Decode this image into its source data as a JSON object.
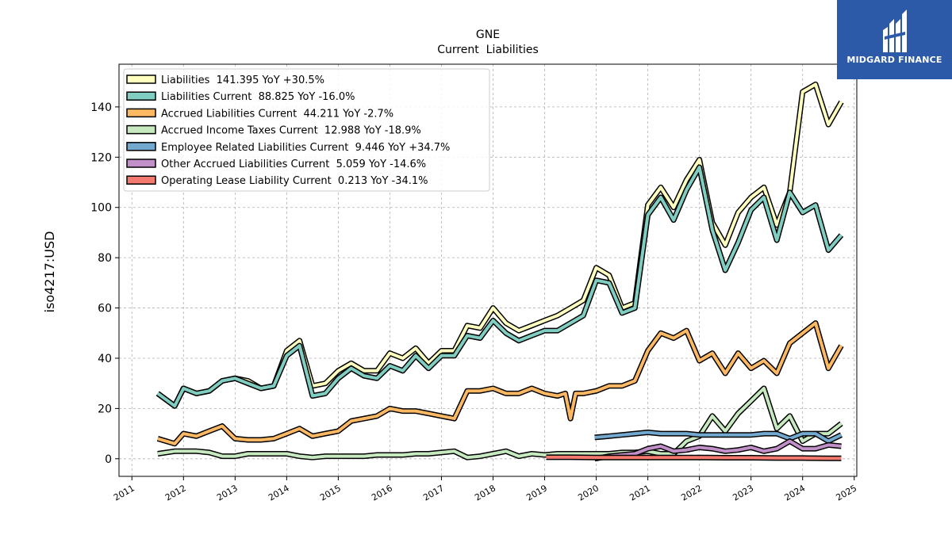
{
  "chart_data": {
    "type": "line",
    "title": "GNE",
    "subtitle": "Current  Liabilities",
    "ylabel": "iso4217:USD",
    "xlabel": "",
    "xlim": [
      2010.75,
      2025.05
    ],
    "ylim": [
      -7,
      157
    ],
    "x_ticks": [
      "2011",
      "2012",
      "2013",
      "2014",
      "2015",
      "2016",
      "2017",
      "2018",
      "2019",
      "2020",
      "2021",
      "2022",
      "2023",
      "2024",
      "2025"
    ],
    "y_ticks": [
      "0",
      "20",
      "40",
      "60",
      "80",
      "100",
      "120",
      "140"
    ],
    "grid": true,
    "legend_position": "top-left",
    "series": [
      {
        "name": "Liabilities",
        "legend": "Liabilities  141.395 YoY +30.5%",
        "color": "#ffffbf",
        "points": [
          [
            2011.5,
            26
          ],
          [
            2011.83,
            21
          ],
          [
            2012.0,
            28
          ],
          [
            2012.25,
            26
          ],
          [
            2012.5,
            27
          ],
          [
            2012.75,
            31
          ],
          [
            2013.0,
            32
          ],
          [
            2013.25,
            31
          ],
          [
            2013.5,
            28
          ],
          [
            2013.75,
            29
          ],
          [
            2014.0,
            43
          ],
          [
            2014.25,
            47
          ],
          [
            2014.5,
            29
          ],
          [
            2014.75,
            30
          ],
          [
            2015.0,
            35
          ],
          [
            2015.25,
            38
          ],
          [
            2015.5,
            35
          ],
          [
            2015.75,
            35
          ],
          [
            2016.0,
            42
          ],
          [
            2016.25,
            40
          ],
          [
            2016.5,
            44
          ],
          [
            2016.75,
            38
          ],
          [
            2017.0,
            43
          ],
          [
            2017.25,
            43
          ],
          [
            2017.5,
            53
          ],
          [
            2017.75,
            52
          ],
          [
            2018.0,
            60
          ],
          [
            2018.25,
            54
          ],
          [
            2018.5,
            51
          ],
          [
            2018.75,
            53
          ],
          [
            2019.0,
            55
          ],
          [
            2019.25,
            57
          ],
          [
            2019.5,
            60
          ],
          [
            2019.75,
            63
          ],
          [
            2020.0,
            76
          ],
          [
            2020.25,
            73
          ],
          [
            2020.5,
            60
          ],
          [
            2020.75,
            62
          ],
          [
            2021.0,
            101
          ],
          [
            2021.25,
            108
          ],
          [
            2021.5,
            100
          ],
          [
            2021.75,
            111
          ],
          [
            2022.0,
            119
          ],
          [
            2022.25,
            94
          ],
          [
            2022.5,
            85
          ],
          [
            2022.75,
            98
          ],
          [
            2023.0,
            104
          ],
          [
            2023.25,
            108
          ],
          [
            2023.5,
            93
          ],
          [
            2023.75,
            106
          ],
          [
            2024.0,
            146
          ],
          [
            2024.25,
            149
          ],
          [
            2024.5,
            133
          ],
          [
            2024.75,
            142
          ]
        ]
      },
      {
        "name": "Liabilities Current",
        "legend": "Liabilities Current  88.825 YoY -16.0%",
        "color": "#80cdc1",
        "points": [
          [
            2011.5,
            26
          ],
          [
            2011.83,
            21
          ],
          [
            2012.0,
            28
          ],
          [
            2012.25,
            26
          ],
          [
            2012.5,
            27
          ],
          [
            2012.75,
            31
          ],
          [
            2013.0,
            32
          ],
          [
            2013.25,
            30
          ],
          [
            2013.5,
            28
          ],
          [
            2013.75,
            29
          ],
          [
            2014.0,
            41
          ],
          [
            2014.25,
            45
          ],
          [
            2014.5,
            25
          ],
          [
            2014.75,
            26
          ],
          [
            2015.0,
            32
          ],
          [
            2015.25,
            36
          ],
          [
            2015.5,
            33
          ],
          [
            2015.75,
            32
          ],
          [
            2016.0,
            37
          ],
          [
            2016.25,
            35
          ],
          [
            2016.5,
            41
          ],
          [
            2016.75,
            36
          ],
          [
            2017.0,
            41
          ],
          [
            2017.25,
            41
          ],
          [
            2017.5,
            49
          ],
          [
            2017.75,
            48
          ],
          [
            2018.0,
            55
          ],
          [
            2018.25,
            50
          ],
          [
            2018.5,
            47
          ],
          [
            2018.75,
            49
          ],
          [
            2019.0,
            51
          ],
          [
            2019.25,
            51
          ],
          [
            2019.5,
            54
          ],
          [
            2019.75,
            57
          ],
          [
            2020.0,
            71
          ],
          [
            2020.25,
            70
          ],
          [
            2020.5,
            58
          ],
          [
            2020.75,
            60
          ],
          [
            2021.0,
            97
          ],
          [
            2021.25,
            104
          ],
          [
            2021.5,
            95
          ],
          [
            2021.75,
            107
          ],
          [
            2022.0,
            116
          ],
          [
            2022.25,
            91
          ],
          [
            2022.5,
            75
          ],
          [
            2022.75,
            86
          ],
          [
            2023.0,
            99
          ],
          [
            2023.25,
            104
          ],
          [
            2023.5,
            87
          ],
          [
            2023.75,
            106
          ],
          [
            2024.0,
            98
          ],
          [
            2024.25,
            101
          ],
          [
            2024.5,
            83
          ],
          [
            2024.75,
            89
          ]
        ]
      },
      {
        "name": "Accrued Liabilities Current",
        "legend": "Accrued Liabilities Current  44.211 YoY -2.7%",
        "color": "#fdb863",
        "points": [
          [
            2011.5,
            8
          ],
          [
            2011.83,
            6
          ],
          [
            2012.0,
            10
          ],
          [
            2012.25,
            9
          ],
          [
            2012.5,
            11
          ],
          [
            2012.75,
            13
          ],
          [
            2013.0,
            8
          ],
          [
            2013.25,
            7.5
          ],
          [
            2013.5,
            7.5
          ],
          [
            2013.75,
            8
          ],
          [
            2014.0,
            10
          ],
          [
            2014.25,
            12
          ],
          [
            2014.5,
            9
          ],
          [
            2014.75,
            10
          ],
          [
            2015.0,
            11
          ],
          [
            2015.25,
            15
          ],
          [
            2015.5,
            16
          ],
          [
            2015.75,
            17
          ],
          [
            2016.0,
            20
          ],
          [
            2016.25,
            19
          ],
          [
            2016.5,
            19
          ],
          [
            2016.75,
            18
          ],
          [
            2017.0,
            17
          ],
          [
            2017.25,
            16
          ],
          [
            2017.5,
            27
          ],
          [
            2017.75,
            27
          ],
          [
            2018.0,
            28
          ],
          [
            2018.25,
            26
          ],
          [
            2018.5,
            26
          ],
          [
            2018.75,
            28
          ],
          [
            2019.0,
            26
          ],
          [
            2019.25,
            25
          ],
          [
            2019.4,
            26
          ],
          [
            2019.5,
            16
          ],
          [
            2019.6,
            26
          ],
          [
            2019.75,
            26
          ],
          [
            2020.0,
            27
          ],
          [
            2020.25,
            29
          ],
          [
            2020.5,
            29
          ],
          [
            2020.75,
            31
          ],
          [
            2021.0,
            43
          ],
          [
            2021.25,
            50
          ],
          [
            2021.5,
            48
          ],
          [
            2021.75,
            51
          ],
          [
            2022.0,
            39
          ],
          [
            2022.25,
            42
          ],
          [
            2022.5,
            34
          ],
          [
            2022.75,
            42
          ],
          [
            2023.0,
            36
          ],
          [
            2023.25,
            39
          ],
          [
            2023.5,
            34
          ],
          [
            2023.75,
            46
          ],
          [
            2024.0,
            50
          ],
          [
            2024.25,
            54
          ],
          [
            2024.5,
            36
          ],
          [
            2024.75,
            45
          ]
        ]
      },
      {
        "name": "Accrued Income Taxes Current",
        "legend": "Accrued Income Taxes Current  12.988 YoY -18.9%",
        "color": "#c7e9c0",
        "points": [
          [
            2011.5,
            2
          ],
          [
            2011.83,
            3
          ],
          [
            2012.0,
            3
          ],
          [
            2012.25,
            3
          ],
          [
            2012.5,
            2.5
          ],
          [
            2012.75,
            1
          ],
          [
            2013.0,
            1
          ],
          [
            2013.25,
            2
          ],
          [
            2013.5,
            2
          ],
          [
            2013.75,
            2
          ],
          [
            2014.0,
            2
          ],
          [
            2014.25,
            1
          ],
          [
            2014.5,
            0.5
          ],
          [
            2014.75,
            1
          ],
          [
            2015.0,
            1
          ],
          [
            2015.25,
            1
          ],
          [
            2015.5,
            1
          ],
          [
            2015.75,
            1.5
          ],
          [
            2016.0,
            1.5
          ],
          [
            2016.25,
            1.5
          ],
          [
            2016.5,
            2
          ],
          [
            2016.75,
            2
          ],
          [
            2017.0,
            2.5
          ],
          [
            2017.25,
            3
          ],
          [
            2017.5,
            0.5
          ],
          [
            2017.75,
            1
          ],
          [
            2018.0,
            2
          ],
          [
            2018.25,
            3
          ],
          [
            2018.5,
            1
          ],
          [
            2018.75,
            2
          ],
          [
            2019.0,
            1.5
          ],
          [
            2019.25,
            2
          ],
          [
            2019.5,
            2
          ],
          [
            2019.75,
            2
          ],
          [
            2020.0,
            2
          ],
          [
            2020.25,
            2
          ],
          [
            2020.5,
            2.5
          ],
          [
            2020.75,
            2.5
          ],
          [
            2021.0,
            3
          ],
          [
            2021.25,
            2
          ],
          [
            2021.5,
            2
          ],
          [
            2021.75,
            7
          ],
          [
            2022.0,
            9
          ],
          [
            2022.25,
            17
          ],
          [
            2022.5,
            11
          ],
          [
            2022.75,
            18
          ],
          [
            2023.0,
            23
          ],
          [
            2023.25,
            28
          ],
          [
            2023.5,
            12
          ],
          [
            2023.75,
            17
          ],
          [
            2024.0,
            7
          ],
          [
            2024.25,
            10
          ],
          [
            2024.5,
            10
          ],
          [
            2024.75,
            14
          ]
        ]
      },
      {
        "name": "Employee Related Liabilities Current",
        "legend": "Employee Related Liabilities Current  9.446 YoY +34.7%",
        "color": "#74a9cf",
        "points": [
          [
            2019.97,
            8.5
          ],
          [
            2020.25,
            9
          ],
          [
            2020.5,
            9.5
          ],
          [
            2020.75,
            10
          ],
          [
            2021.0,
            10.5
          ],
          [
            2021.25,
            10
          ],
          [
            2021.5,
            10
          ],
          [
            2021.75,
            10
          ],
          [
            2022.0,
            9.5
          ],
          [
            2022.25,
            9.5
          ],
          [
            2022.5,
            9.5
          ],
          [
            2022.75,
            9.5
          ],
          [
            2023.0,
            9.5
          ],
          [
            2023.25,
            10
          ],
          [
            2023.5,
            10
          ],
          [
            2023.75,
            8
          ],
          [
            2024.0,
            10
          ],
          [
            2024.25,
            10
          ],
          [
            2024.5,
            7
          ],
          [
            2024.75,
            9.5
          ]
        ]
      },
      {
        "name": "Other Accrued Liabilities Current",
        "legend": "Other Accrued Liabilities Current  5.059 YoY -14.6%",
        "color": "#c290c9",
        "points": [
          [
            2019.97,
            0
          ],
          [
            2020.25,
            1
          ],
          [
            2020.5,
            1.5
          ],
          [
            2020.75,
            2
          ],
          [
            2021.0,
            4
          ],
          [
            2021.25,
            5
          ],
          [
            2021.5,
            3
          ],
          [
            2021.75,
            3.5
          ],
          [
            2022.0,
            4.5
          ],
          [
            2022.25,
            4
          ],
          [
            2022.5,
            3
          ],
          [
            2022.75,
            3.5
          ],
          [
            2023.0,
            4.5
          ],
          [
            2023.25,
            3
          ],
          [
            2023.5,
            4
          ],
          [
            2023.75,
            7
          ],
          [
            2024.0,
            4
          ],
          [
            2024.25,
            4
          ],
          [
            2024.5,
            5.5
          ],
          [
            2024.75,
            5
          ]
        ]
      },
      {
        "name": "Operating Lease Liability Current",
        "legend": "Operating Lease Liability Current  0.213 YoY -34.1%",
        "color": "#f4796e",
        "points": [
          [
            2019.03,
            0.6
          ],
          [
            2019.5,
            0.6
          ],
          [
            2020.0,
            0.5
          ],
          [
            2020.5,
            0.5
          ],
          [
            2021.0,
            0.5
          ],
          [
            2021.5,
            0.5
          ],
          [
            2022.0,
            0.5
          ],
          [
            2022.5,
            0.4
          ],
          [
            2023.0,
            0.4
          ],
          [
            2023.5,
            0.3
          ],
          [
            2024.0,
            0.3
          ],
          [
            2024.5,
            0.2
          ],
          [
            2024.75,
            0.2
          ]
        ]
      }
    ]
  },
  "logo": {
    "text": "MIDGARD FINANCE"
  }
}
